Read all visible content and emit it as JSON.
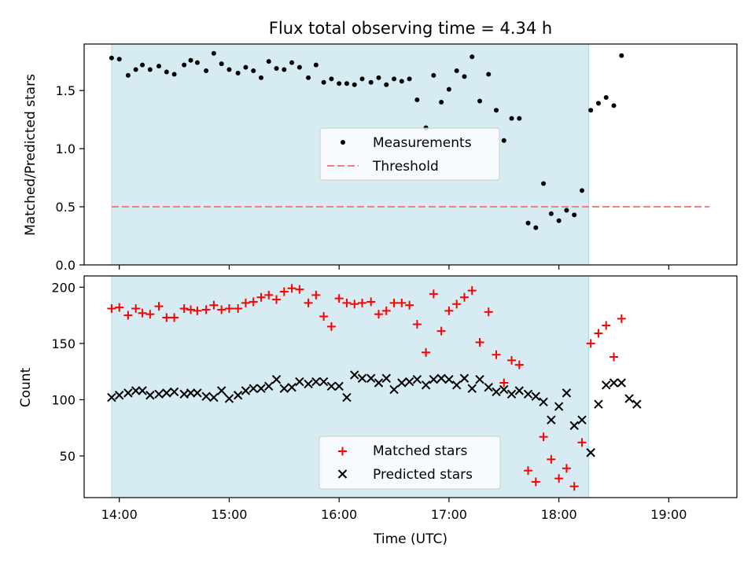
{
  "title": "Flux total observing time = 4.34 h",
  "x_axis": {
    "label": "Time (UTC)",
    "ticks": [
      "14:00",
      "15:00",
      "16:00",
      "17:00",
      "18:00",
      "19:00"
    ],
    "tick_hours": [
      14,
      15,
      16,
      17,
      18,
      19
    ],
    "range_hours": [
      13.68,
      19.62
    ]
  },
  "shaded_interval_hours": [
    13.93,
    18.27
  ],
  "chart_data": [
    {
      "type": "scatter",
      "ylabel": "Matched/Predicted stars",
      "ylim": [
        0.0,
        1.9
      ],
      "yticks": [
        "0.0",
        "0.5",
        "1.0",
        "1.5"
      ],
      "ytick_values": [
        0.0,
        0.5,
        1.0,
        1.5
      ],
      "legend": {
        "placement": "center",
        "entries": [
          "Measurements",
          "Threshold"
        ]
      },
      "threshold": {
        "name": "Threshold",
        "value": 0.5,
        "x_range": [
          13.93,
          19.37
        ],
        "color": "#f08080"
      },
      "series": [
        {
          "name": "Measurements",
          "color": "#000000",
          "points": [
            [
              13.93,
              1.78
            ],
            [
              14.0,
              1.77
            ],
            [
              14.08,
              1.63
            ],
            [
              14.15,
              1.68
            ],
            [
              14.21,
              1.72
            ],
            [
              14.28,
              1.68
            ],
            [
              14.36,
              1.71
            ],
            [
              14.43,
              1.66
            ],
            [
              14.5,
              1.64
            ],
            [
              14.59,
              1.72
            ],
            [
              14.65,
              1.76
            ],
            [
              14.71,
              1.74
            ],
            [
              14.79,
              1.67
            ],
            [
              14.86,
              1.82
            ],
            [
              14.93,
              1.73
            ],
            [
              15.0,
              1.68
            ],
            [
              15.08,
              1.65
            ],
            [
              15.15,
              1.7
            ],
            [
              15.22,
              1.67
            ],
            [
              15.29,
              1.61
            ],
            [
              15.36,
              1.75
            ],
            [
              15.43,
              1.69
            ],
            [
              15.5,
              1.68
            ],
            [
              15.57,
              1.74
            ],
            [
              15.64,
              1.7
            ],
            [
              15.72,
              1.61
            ],
            [
              15.79,
              1.72
            ],
            [
              15.86,
              1.57
            ],
            [
              15.93,
              1.6
            ],
            [
              16.0,
              1.56
            ],
            [
              16.07,
              1.56
            ],
            [
              16.14,
              1.55
            ],
            [
              16.21,
              1.6
            ],
            [
              16.29,
              1.57
            ],
            [
              16.36,
              1.61
            ],
            [
              16.43,
              1.55
            ],
            [
              16.5,
              1.6
            ],
            [
              16.57,
              1.58
            ],
            [
              16.64,
              1.6
            ],
            [
              16.71,
              1.42
            ],
            [
              16.79,
              1.18
            ],
            [
              16.86,
              1.63
            ],
            [
              16.93,
              1.4
            ],
            [
              17.0,
              1.51
            ],
            [
              17.07,
              1.67
            ],
            [
              17.14,
              1.62
            ],
            [
              17.21,
              1.79
            ],
            [
              17.28,
              1.41
            ],
            [
              17.36,
              1.64
            ],
            [
              17.43,
              1.33
            ],
            [
              17.5,
              1.07
            ],
            [
              17.57,
              1.26
            ],
            [
              17.64,
              1.26
            ],
            [
              17.72,
              0.36
            ],
            [
              17.79,
              0.32
            ],
            [
              17.86,
              0.7
            ],
            [
              17.93,
              0.44
            ],
            [
              18.0,
              0.38
            ],
            [
              18.07,
              0.47
            ],
            [
              18.14,
              0.43
            ],
            [
              18.21,
              0.64
            ],
            [
              18.29,
              1.33
            ],
            [
              18.36,
              1.39
            ],
            [
              18.43,
              1.44
            ],
            [
              18.5,
              1.37
            ],
            [
              18.57,
              1.8
            ]
          ]
        }
      ]
    },
    {
      "type": "scatter",
      "ylabel": "Count",
      "ylim": [
        13,
        210
      ],
      "yticks": [
        "50",
        "100",
        "150",
        "200"
      ],
      "ytick_values": [
        50,
        100,
        150,
        200
      ],
      "legend": {
        "placement": "bottom-center",
        "entries": [
          "Matched stars",
          "Predicted stars"
        ]
      },
      "series": [
        {
          "name": "Matched stars",
          "marker": "plus",
          "color": "#ff0000",
          "points": [
            [
              13.93,
              181
            ],
            [
              14.0,
              182
            ],
            [
              14.08,
              175
            ],
            [
              14.15,
              181
            ],
            [
              14.21,
              177
            ],
            [
              14.28,
              176
            ],
            [
              14.36,
              183
            ],
            [
              14.43,
              173
            ],
            [
              14.5,
              173
            ],
            [
              14.59,
              181
            ],
            [
              14.65,
              180
            ],
            [
              14.71,
              179
            ],
            [
              14.79,
              180
            ],
            [
              14.86,
              184
            ],
            [
              14.93,
              180
            ],
            [
              15.0,
              181
            ],
            [
              15.08,
              181
            ],
            [
              15.15,
              186
            ],
            [
              15.22,
              187
            ],
            [
              15.29,
              191
            ],
            [
              15.36,
              193
            ],
            [
              15.43,
              189
            ],
            [
              15.5,
              196
            ],
            [
              15.57,
              199
            ],
            [
              15.64,
              198
            ],
            [
              15.72,
              186
            ],
            [
              15.79,
              193
            ],
            [
              15.86,
              174
            ],
            [
              15.93,
              165
            ],
            [
              16.0,
              190
            ],
            [
              16.07,
              186
            ],
            [
              16.14,
              185
            ],
            [
              16.21,
              186
            ],
            [
              16.29,
              187
            ],
            [
              16.36,
              176
            ],
            [
              16.43,
              179
            ],
            [
              16.5,
              186
            ],
            [
              16.57,
              186
            ],
            [
              16.64,
              184
            ],
            [
              16.71,
              167
            ],
            [
              16.79,
              142
            ],
            [
              16.86,
              194
            ],
            [
              16.93,
              161
            ],
            [
              17.0,
              179
            ],
            [
              17.07,
              185
            ],
            [
              17.14,
              191
            ],
            [
              17.21,
              197
            ],
            [
              17.28,
              151
            ],
            [
              17.36,
              178
            ],
            [
              17.43,
              140
            ],
            [
              17.5,
              115
            ],
            [
              17.57,
              135
            ],
            [
              17.64,
              131
            ],
            [
              17.72,
              37
            ],
            [
              17.79,
              27
            ],
            [
              17.86,
              67
            ],
            [
              17.93,
              47
            ],
            [
              18.0,
              30
            ],
            [
              18.07,
              39
            ],
            [
              18.14,
              23
            ],
            [
              18.21,
              62
            ],
            [
              18.29,
              150
            ],
            [
              18.36,
              159
            ],
            [
              18.43,
              166
            ],
            [
              18.5,
              138
            ],
            [
              18.57,
              172
            ]
          ]
        },
        {
          "name": "Predicted stars",
          "marker": "x",
          "color": "#000000",
          "points": [
            [
              13.93,
              102
            ],
            [
              14.0,
              104
            ],
            [
              14.08,
              106
            ],
            [
              14.15,
              108
            ],
            [
              14.21,
              108
            ],
            [
              14.28,
              104
            ],
            [
              14.36,
              105
            ],
            [
              14.43,
              106
            ],
            [
              14.5,
              107
            ],
            [
              14.59,
              105
            ],
            [
              14.65,
              106
            ],
            [
              14.71,
              106
            ],
            [
              14.79,
              103
            ],
            [
              14.86,
              102
            ],
            [
              14.93,
              108
            ],
            [
              15.0,
              101
            ],
            [
              15.08,
              104
            ],
            [
              15.15,
              108
            ],
            [
              15.22,
              110
            ],
            [
              15.29,
              110
            ],
            [
              15.36,
              112
            ],
            [
              15.43,
              118
            ],
            [
              15.5,
              110
            ],
            [
              15.57,
              111
            ],
            [
              15.64,
              116
            ],
            [
              15.72,
              114
            ],
            [
              15.79,
              116
            ],
            [
              15.86,
              116
            ],
            [
              15.93,
              112
            ],
            [
              16.0,
              112
            ],
            [
              16.07,
              102
            ],
            [
              16.14,
              122
            ],
            [
              16.21,
              119
            ],
            [
              16.29,
              119
            ],
            [
              16.36,
              115
            ],
            [
              16.43,
              119
            ],
            [
              16.5,
              109
            ],
            [
              16.57,
              115
            ],
            [
              16.64,
              116
            ],
            [
              16.71,
              118
            ],
            [
              16.79,
              113
            ],
            [
              16.86,
              118
            ],
            [
              16.93,
              119
            ],
            [
              17.0,
              118
            ],
            [
              17.07,
              113
            ],
            [
              17.14,
              119
            ],
            [
              17.21,
              110
            ],
            [
              17.28,
              118
            ],
            [
              17.36,
              111
            ],
            [
              17.43,
              107
            ],
            [
              17.5,
              109
            ],
            [
              17.57,
              105
            ],
            [
              17.64,
              108
            ],
            [
              17.72,
              105
            ],
            [
              17.79,
              103
            ],
            [
              17.86,
              98
            ],
            [
              17.93,
              82
            ],
            [
              18.0,
              94
            ],
            [
              18.07,
              106
            ],
            [
              18.14,
              77
            ],
            [
              18.21,
              82
            ],
            [
              18.29,
              53
            ],
            [
              18.36,
              96
            ],
            [
              18.43,
              113
            ],
            [
              18.5,
              115
            ],
            [
              18.57,
              115
            ],
            [
              18.64,
              101
            ],
            [
              18.71,
              96
            ]
          ]
        }
      ]
    }
  ]
}
